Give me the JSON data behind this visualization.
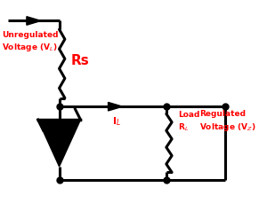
{
  "bg_color": "#ffffff",
  "line_color": "#000000",
  "text_color": "#ff0000",
  "line_width": 2.2,
  "fig_width": 3.0,
  "fig_height": 2.29,
  "labels": {
    "unregulated": "Unregulated\nVoltage (V$_L$)",
    "Rs": "Rs",
    "IL": "I$_L$",
    "load": "Load\nR$_L$",
    "regulated": "Regulated\nVoltage (V$_Z$)"
  }
}
